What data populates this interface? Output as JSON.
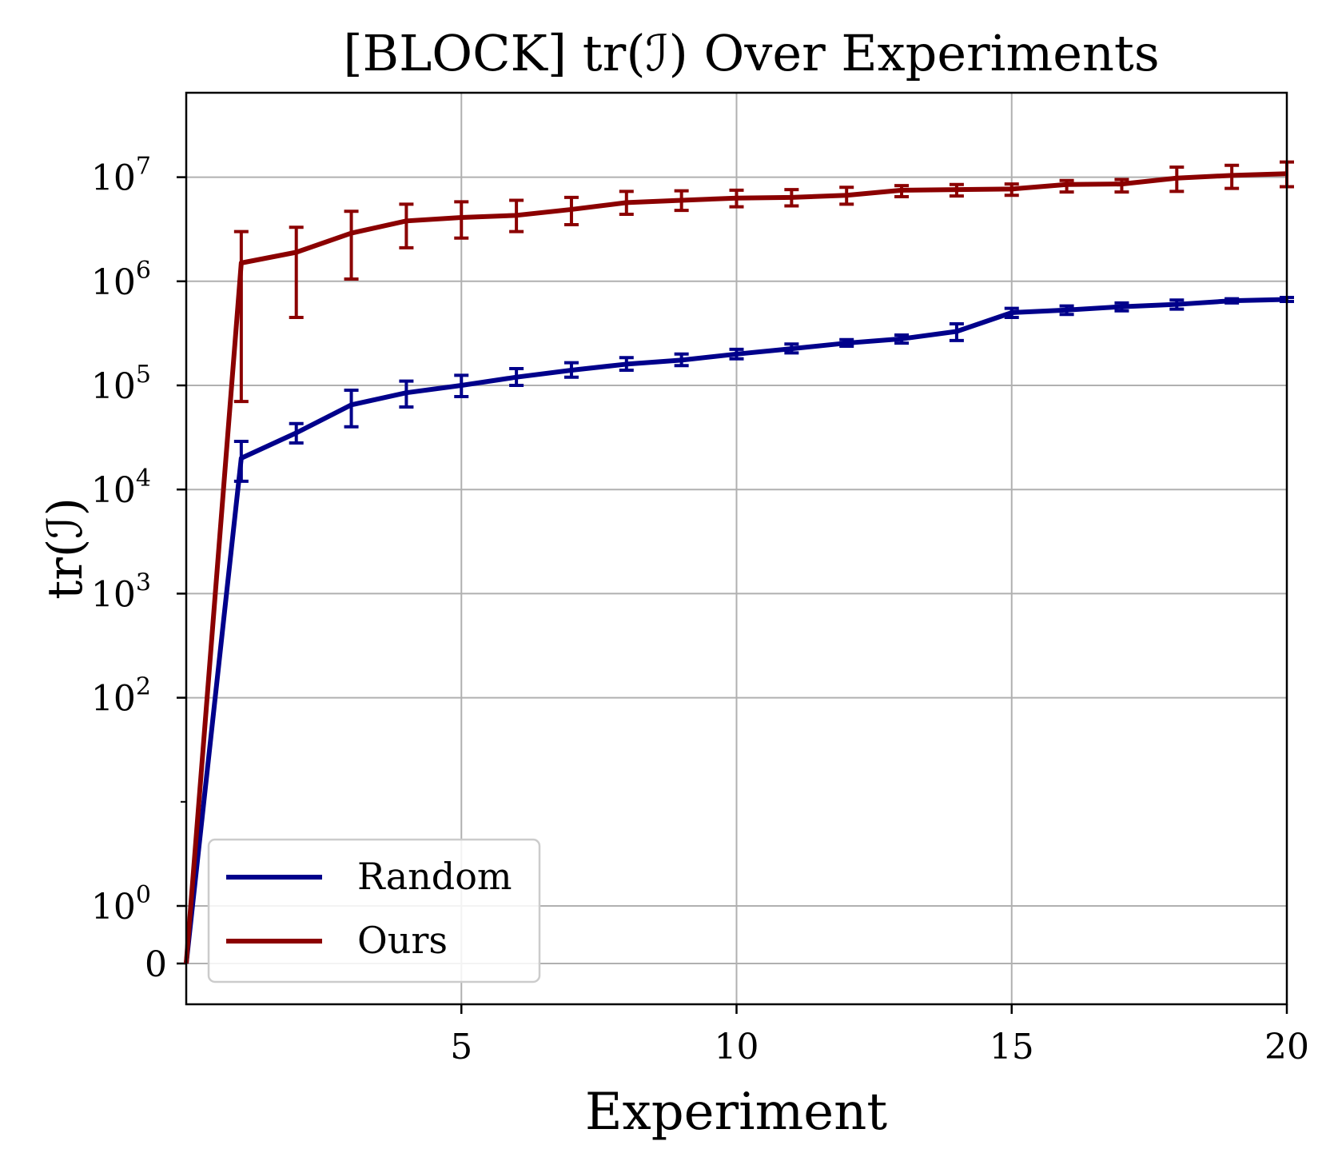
{
  "chart_data": {
    "type": "line",
    "title": "[BLOCK] tr(ℐ) Over Experiments",
    "xlabel": "Experiment",
    "ylabel": "tr(ℐ)",
    "yscale": "symlog",
    "grid": true,
    "legend_loc": "lower-left",
    "xlim": [
      0,
      20
    ],
    "x_ticks": [
      5,
      10,
      15,
      20
    ],
    "x_tick_labels": [
      "5",
      "10",
      "15",
      "20"
    ],
    "y_tick_labels": [
      {
        "value": 0,
        "base": "0",
        "exp": ""
      },
      {
        "value": 1,
        "base": "10",
        "exp": "0"
      },
      {
        "value": 100,
        "base": "10",
        "exp": "2"
      },
      {
        "value": 1000,
        "base": "10",
        "exp": "3"
      },
      {
        "value": 10000,
        "base": "10",
        "exp": "4"
      },
      {
        "value": 100000,
        "base": "10",
        "exp": "5"
      },
      {
        "value": 1000000,
        "base": "10",
        "exp": "6"
      },
      {
        "value": 10000000,
        "base": "10",
        "exp": "7"
      }
    ],
    "x": [
      0,
      1,
      2,
      3,
      4,
      5,
      6,
      7,
      8,
      9,
      10,
      11,
      12,
      13,
      14,
      15,
      16,
      17,
      18,
      19,
      20
    ],
    "series": [
      {
        "name": "Random",
        "color": "#00008b",
        "values": [
          0,
          20000,
          35000,
          65000,
          85000,
          100000,
          120000,
          140000,
          160000,
          175000,
          200000,
          225000,
          255000,
          280000,
          330000,
          500000,
          530000,
          570000,
          600000,
          650000,
          670000
        ],
        "err_low": [
          0,
          12000,
          28000,
          40000,
          62000,
          78000,
          100000,
          120000,
          140000,
          155000,
          180000,
          205000,
          238000,
          255000,
          270000,
          450000,
          480000,
          520000,
          540000,
          620000,
          640000
        ],
        "err_high": [
          0,
          29000,
          43000,
          90000,
          110000,
          125000,
          145000,
          165000,
          185000,
          200000,
          222000,
          250000,
          275000,
          305000,
          390000,
          550000,
          580000,
          620000,
          660000,
          680000,
          700000
        ]
      },
      {
        "name": "Ours",
        "color": "#8b0000",
        "values": [
          0,
          1500000,
          1900000,
          2900000,
          3800000,
          4100000,
          4300000,
          4900000,
          5700000,
          6000000,
          6300000,
          6400000,
          6700000,
          7500000,
          7600000,
          7700000,
          8500000,
          8600000,
          9800000,
          10400000,
          10800000
        ],
        "err_low": [
          0,
          70000,
          450000,
          1050000,
          2100000,
          2600000,
          3000000,
          3500000,
          4400000,
          4800000,
          5200000,
          5300000,
          5500000,
          6500000,
          6600000,
          6700000,
          7200000,
          7200000,
          7300000,
          7800000,
          8100000
        ],
        "err_high": [
          0,
          3000000,
          3300000,
          4700000,
          5500000,
          5800000,
          6000000,
          6400000,
          7300000,
          7400000,
          7500000,
          7600000,
          8000000,
          8300000,
          8500000,
          8600000,
          9300000,
          9500000,
          12500000,
          13000000,
          14000000
        ]
      }
    ]
  }
}
